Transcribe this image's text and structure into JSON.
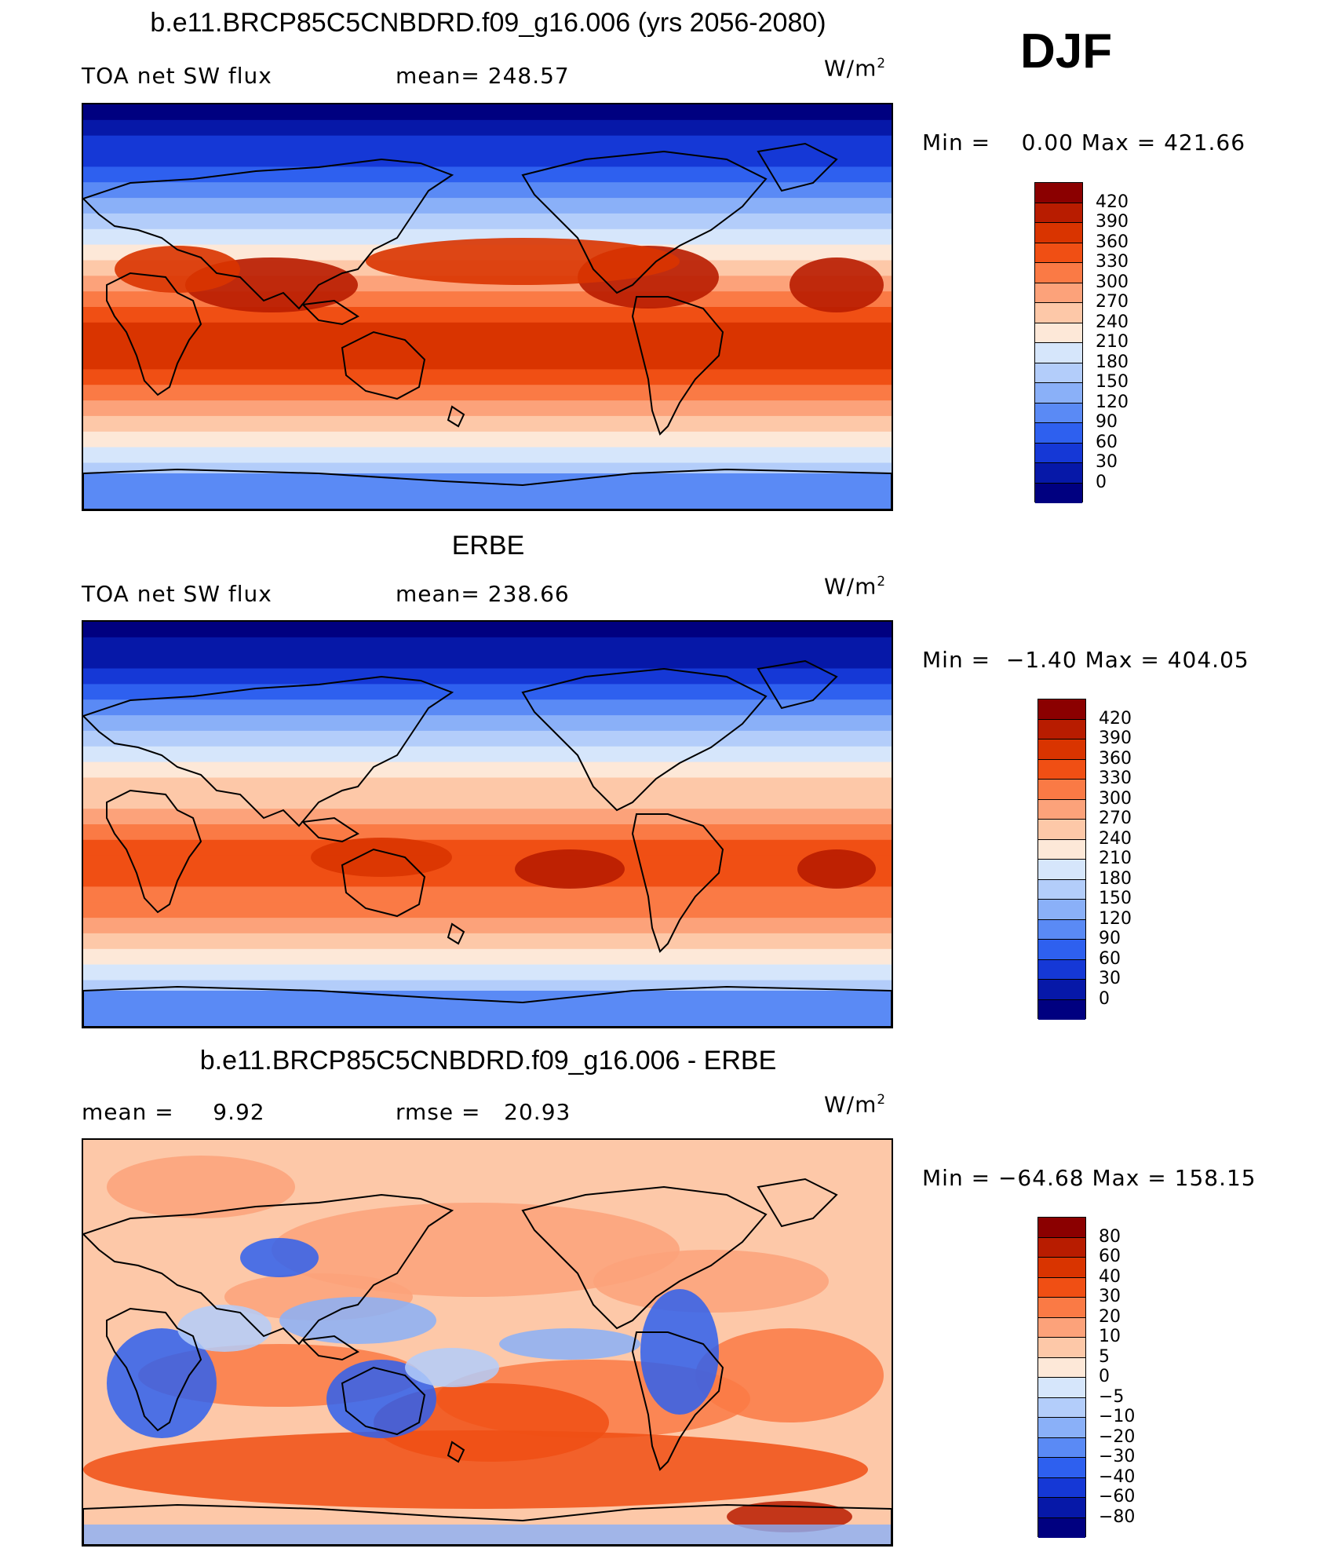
{
  "season": "DJF",
  "panels": [
    {
      "id": "model",
      "title": "b.e11.BRCP85C5CNBDRD.f09_g16.006 (yrs 2056-2080)",
      "left_label": "TOA net SW flux",
      "mid_label": "mean= 248.57",
      "units": "W/m",
      "units_sup": "2",
      "min_label": "Min =",
      "min_value": "0.00",
      "max_label": "Max =",
      "max_value": "421.66",
      "levels": [
        "420",
        "390",
        "360",
        "330",
        "300",
        "270",
        "240",
        "210",
        "180",
        "150",
        "120",
        "90",
        "60",
        "30",
        "0"
      ],
      "colors": [
        "#8b0000",
        "#b81c00",
        "#d93400",
        "#f04f14",
        "#fa7a45",
        "#fca27a",
        "#fdc8a8",
        "#fde8d8",
        "#d6e6fb",
        "#b3cdfa",
        "#8ab0f8",
        "#5a8af5",
        "#2e60ef",
        "#1538d6",
        "#0618a8",
        "#000080"
      ],
      "variant": "absolute"
    },
    {
      "id": "obs",
      "title": "ERBE",
      "left_label": "TOA net SW flux",
      "mid_label": "mean= 238.66",
      "units": "W/m",
      "units_sup": "2",
      "min_label": "Min =",
      "min_value": "−1.40",
      "max_label": "Max =",
      "max_value": "404.05",
      "levels": [
        "420",
        "390",
        "360",
        "330",
        "300",
        "270",
        "240",
        "210",
        "180",
        "150",
        "120",
        "90",
        "60",
        "30",
        "0"
      ],
      "colors": [
        "#8b0000",
        "#b81c00",
        "#d93400",
        "#f04f14",
        "#fa7a45",
        "#fca27a",
        "#fdc8a8",
        "#fde8d8",
        "#d6e6fb",
        "#b3cdfa",
        "#8ab0f8",
        "#5a8af5",
        "#2e60ef",
        "#1538d6",
        "#0618a8",
        "#000080"
      ],
      "variant": "absolute"
    },
    {
      "id": "diff",
      "title": "b.e11.BRCP85C5CNBDRD.f09_g16.006 - ERBE",
      "left_label": "mean =     9.92",
      "mid_label": "rmse =   20.93",
      "units": "W/m",
      "units_sup": "2",
      "min_label": "Min =",
      "min_value": "−64.68",
      "max_label": "Max =",
      "max_value": "158.15",
      "levels": [
        "80",
        "60",
        "40",
        "30",
        "20",
        "10",
        "5",
        "0",
        "−5",
        "−10",
        "−20",
        "−30",
        "−40",
        "−60",
        "−80"
      ],
      "colors": [
        "#8b0000",
        "#b81c00",
        "#d93400",
        "#f04f14",
        "#fa7a45",
        "#fca27a",
        "#fdc8a8",
        "#fde8d8",
        "#d6e6fb",
        "#b3cdfa",
        "#8ab0f8",
        "#5a8af5",
        "#2e60ef",
        "#1538d6",
        "#0618a8",
        "#000080"
      ],
      "variant": "difference"
    }
  ]
}
